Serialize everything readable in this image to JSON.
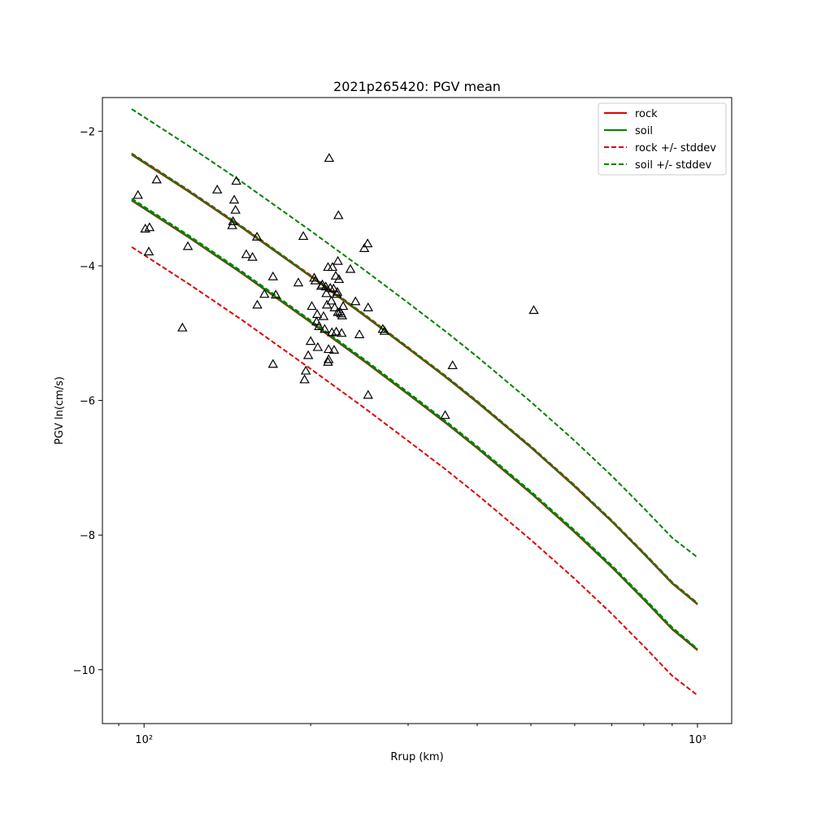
{
  "chart_data": {
    "type": "scatter",
    "title": "2021p265420: PGV mean",
    "xlabel": "Rrup (km)",
    "ylabel": "PGV ln(cm/s)",
    "xscale": "log",
    "xlim": [
      84.1,
      1153
    ],
    "ylim": [
      -10.8,
      -1.5
    ],
    "grid": false,
    "legend_position": "top-right",
    "x_ticks": [
      100,
      1000
    ],
    "x_tick_labels": [
      "10²",
      "10³"
    ],
    "y_ticks": [
      -10,
      -8,
      -6,
      -4,
      -2
    ],
    "y_tick_labels": [
      "−10",
      "−8",
      "−6",
      "−4",
      "−2"
    ],
    "colors": {
      "rock": "#dd0000",
      "soil": "#008000",
      "points": "#000000"
    },
    "curve_x": [
      95,
      120,
      150,
      200,
      250,
      300,
      350,
      400,
      500,
      600,
      700,
      800,
      900,
      1000
    ],
    "series": [
      {
        "name": "rock",
        "group": "rock",
        "style": "solid",
        "values": [
          -2.35,
          -2.89,
          -3.43,
          -4.16,
          -4.74,
          -5.23,
          -5.65,
          -6.03,
          -6.7,
          -7.28,
          -7.8,
          -8.28,
          -8.72,
          -9.03
        ]
      },
      {
        "name": "",
        "group": "rock",
        "style": "solid",
        "values": [
          -3.03,
          -3.57,
          -4.11,
          -4.84,
          -5.42,
          -5.91,
          -6.33,
          -6.71,
          -7.38,
          -7.96,
          -8.48,
          -8.96,
          -9.4,
          -9.71
        ]
      },
      {
        "name": "soil",
        "group": "soil",
        "style": "solid",
        "values": [
          -2.34,
          -2.88,
          -3.42,
          -4.15,
          -4.73,
          -5.22,
          -5.64,
          -6.02,
          -6.69,
          -7.27,
          -7.79,
          -8.27,
          -8.71,
          -9.02
        ]
      },
      {
        "name": "",
        "group": "soil",
        "style": "solid",
        "values": [
          -3.02,
          -3.56,
          -4.1,
          -4.83,
          -5.41,
          -5.9,
          -6.32,
          -6.7,
          -7.37,
          -7.95,
          -8.47,
          -8.95,
          -9.39,
          -9.7
        ]
      },
      {
        "name": "rock +/- stddev",
        "group": "rock",
        "style": "dashed",
        "values": [
          -2.33,
          -2.87,
          -3.41,
          -4.14,
          -4.72,
          -5.21,
          -5.63,
          -6.01,
          -6.68,
          -7.26,
          -7.78,
          -8.26,
          -8.7,
          -9.01
        ]
      },
      {
        "name": "",
        "group": "rock",
        "style": "dashed",
        "values": [
          -3.72,
          -4.26,
          -4.8,
          -5.53,
          -6.11,
          -6.6,
          -7.02,
          -7.4,
          -8.07,
          -8.65,
          -9.17,
          -9.65,
          -10.09,
          -10.38
        ]
      },
      {
        "name": "soil +/- stddev",
        "group": "soil",
        "style": "dashed",
        "values": [
          -1.67,
          -2.21,
          -2.75,
          -3.48,
          -4.06,
          -4.55,
          -4.97,
          -5.35,
          -6.02,
          -6.6,
          -7.12,
          -7.6,
          -8.04,
          -8.33
        ]
      },
      {
        "name": "",
        "group": "soil",
        "style": "dashed",
        "values": [
          -3.0,
          -3.54,
          -4.08,
          -4.81,
          -5.39,
          -5.88,
          -6.3,
          -6.68,
          -7.35,
          -7.93,
          -8.45,
          -8.93,
          -9.37,
          -9.69
        ]
      }
    ],
    "legend": [
      {
        "label": "rock",
        "color": "#dd0000",
        "style": "solid"
      },
      {
        "label": "soil",
        "color": "#008000",
        "style": "solid"
      },
      {
        "label": "rock +/- stddev",
        "color": "#dd0000",
        "style": "dashed"
      },
      {
        "label": "soil +/- stddev",
        "color": "#008000",
        "style": "dashed"
      }
    ],
    "points": [
      {
        "x": 97.5,
        "y": -2.95
      },
      {
        "x": 100.5,
        "y": -3.45
      },
      {
        "x": 102.3,
        "y": -3.43
      },
      {
        "x": 105.4,
        "y": -2.72
      },
      {
        "x": 102.0,
        "y": -3.79
      },
      {
        "x": 117.3,
        "y": -4.92
      },
      {
        "x": 120.0,
        "y": -3.71
      },
      {
        "x": 135.6,
        "y": -2.87
      },
      {
        "x": 144.3,
        "y": -3.4
      },
      {
        "x": 144.8,
        "y": -3.34
      },
      {
        "x": 145.5,
        "y": -3.02
      },
      {
        "x": 146.3,
        "y": -3.17
      },
      {
        "x": 146.8,
        "y": -2.74
      },
      {
        "x": 153.0,
        "y": -3.83
      },
      {
        "x": 157.0,
        "y": -3.87
      },
      {
        "x": 160.0,
        "y": -3.57
      },
      {
        "x": 160.2,
        "y": -4.58
      },
      {
        "x": 165.0,
        "y": -4.42
      },
      {
        "x": 171.0,
        "y": -4.16
      },
      {
        "x": 173.0,
        "y": -4.43
      },
      {
        "x": 171.0,
        "y": -5.46
      },
      {
        "x": 190.0,
        "y": -4.25
      },
      {
        "x": 194.0,
        "y": -3.56
      },
      {
        "x": 196.0,
        "y": -5.56
      },
      {
        "x": 195.0,
        "y": -5.69
      },
      {
        "x": 198.0,
        "y": -5.33
      },
      {
        "x": 200.0,
        "y": -5.12
      },
      {
        "x": 201.0,
        "y": -4.6
      },
      {
        "x": 203.0,
        "y": -4.18
      },
      {
        "x": 204.0,
        "y": -4.22
      },
      {
        "x": 205.0,
        "y": -4.83
      },
      {
        "x": 205.5,
        "y": -4.72
      },
      {
        "x": 206.0,
        "y": -5.21
      },
      {
        "x": 207.0,
        "y": -4.9
      },
      {
        "x": 209.0,
        "y": -4.3
      },
      {
        "x": 210.0,
        "y": -4.28
      },
      {
        "x": 211.0,
        "y": -4.75
      },
      {
        "x": 212.0,
        "y": -4.94
      },
      {
        "x": 213.0,
        "y": -4.31
      },
      {
        "x": 213.5,
        "y": -4.41
      },
      {
        "x": 214.0,
        "y": -4.58
      },
      {
        "x": 215.0,
        "y": -4.02
      },
      {
        "x": 215.5,
        "y": -5.24
      },
      {
        "x": 215.0,
        "y": -5.43
      },
      {
        "x": 215.5,
        "y": -5.39
      },
      {
        "x": 216.0,
        "y": -2.4
      },
      {
        "x": 217.0,
        "y": -4.33
      },
      {
        "x": 218.0,
        "y": -4.52
      },
      {
        "x": 218.5,
        "y": -4.99
      },
      {
        "x": 219.0,
        "y": -4.02
      },
      {
        "x": 220.0,
        "y": -4.34
      },
      {
        "x": 220.5,
        "y": -5.25
      },
      {
        "x": 221.0,
        "y": -4.62
      },
      {
        "x": 222.0,
        "y": -4.15
      },
      {
        "x": 222.5,
        "y": -4.98
      },
      {
        "x": 223.0,
        "y": -4.42
      },
      {
        "x": 223.5,
        "y": -4.39
      },
      {
        "x": 224.0,
        "y": -3.93
      },
      {
        "x": 224.0,
        "y": -4.69
      },
      {
        "x": 224.5,
        "y": -3.25
      },
      {
        "x": 225.0,
        "y": -4.2
      },
      {
        "x": 226.0,
        "y": -4.68
      },
      {
        "x": 227.0,
        "y": -4.71
      },
      {
        "x": 227.5,
        "y": -5.0
      },
      {
        "x": 228.0,
        "y": -4.74
      },
      {
        "x": 229.0,
        "y": -4.6
      },
      {
        "x": 236.0,
        "y": -4.05
      },
      {
        "x": 241.0,
        "y": -4.53
      },
      {
        "x": 245.0,
        "y": -5.02
      },
      {
        "x": 250.0,
        "y": -3.74
      },
      {
        "x": 253.5,
        "y": -3.67
      },
      {
        "x": 254.0,
        "y": -4.62
      },
      {
        "x": 254.0,
        "y": -5.92
      },
      {
        "x": 270.0,
        "y": -4.94
      },
      {
        "x": 272.0,
        "y": -4.97
      },
      {
        "x": 350.0,
        "y": -6.22
      },
      {
        "x": 361.0,
        "y": -5.48
      },
      {
        "x": 506.0,
        "y": -4.66
      }
    ]
  }
}
